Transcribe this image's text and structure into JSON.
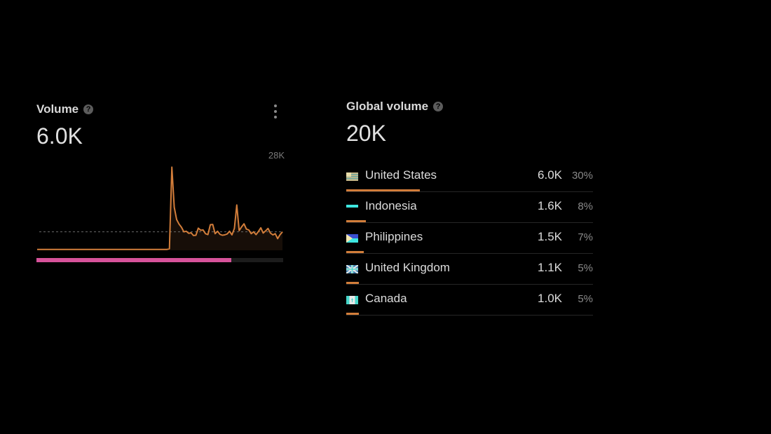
{
  "volume_card": {
    "title": "Volume",
    "help_icon": "?",
    "value": "6.0K",
    "chart_max_label": "28K",
    "kd_fraction": 0.79
  },
  "global_card": {
    "title": "Global volume",
    "help_icon": "?",
    "value": "20K",
    "countries": [
      {
        "name": "United States",
        "volume": "6.0K",
        "percent": "30%",
        "share": 0.3,
        "flag_icon": "flag-us-icon"
      },
      {
        "name": "Indonesia",
        "volume": "1.6K",
        "percent": "8%",
        "share": 0.08,
        "flag_icon": "flag-id-icon"
      },
      {
        "name": "Philippines",
        "volume": "1.5K",
        "percent": "7%",
        "share": 0.07,
        "flag_icon": "flag-ph-icon"
      },
      {
        "name": "United Kingdom",
        "volume": "1.1K",
        "percent": "5%",
        "share": 0.05,
        "flag_icon": "flag-gb-icon"
      },
      {
        "name": "Canada",
        "volume": "1.0K",
        "percent": "5%",
        "share": 0.05,
        "flag_icon": "flag-ca-icon"
      }
    ]
  },
  "chart_data": {
    "type": "line",
    "ylim": [
      0,
      28000
    ],
    "average": 6000,
    "values": [
      300,
      300,
      300,
      300,
      300,
      300,
      300,
      300,
      300,
      300,
      300,
      300,
      300,
      300,
      300,
      300,
      300,
      300,
      300,
      300,
      300,
      300,
      300,
      300,
      300,
      300,
      300,
      300,
      300,
      300,
      300,
      300,
      300,
      300,
      300,
      300,
      300,
      300,
      300,
      300,
      300,
      300,
      300,
      300,
      300,
      300,
      300,
      300,
      300,
      300,
      300,
      300,
      300,
      300,
      300,
      500,
      27000,
      14000,
      10000,
      8500,
      7500,
      6000,
      6200,
      5500,
      5700,
      4800,
      4900,
      7200,
      6500,
      6600,
      5400,
      5100,
      8300,
      8400,
      5400,
      6200,
      5200,
      4900,
      5000,
      5300,
      6200,
      5000,
      7100,
      14700,
      6400,
      7600,
      8600,
      6900,
      6600,
      5400,
      6000,
      5100,
      6100,
      7300,
      5600,
      6300,
      7100,
      5600,
      5000,
      5400,
      3800,
      5100,
      6000
    ]
  },
  "colors": {
    "line": "#d27d3a",
    "kd_bar": "#d6529a",
    "share_bar": "#d27d3a"
  }
}
